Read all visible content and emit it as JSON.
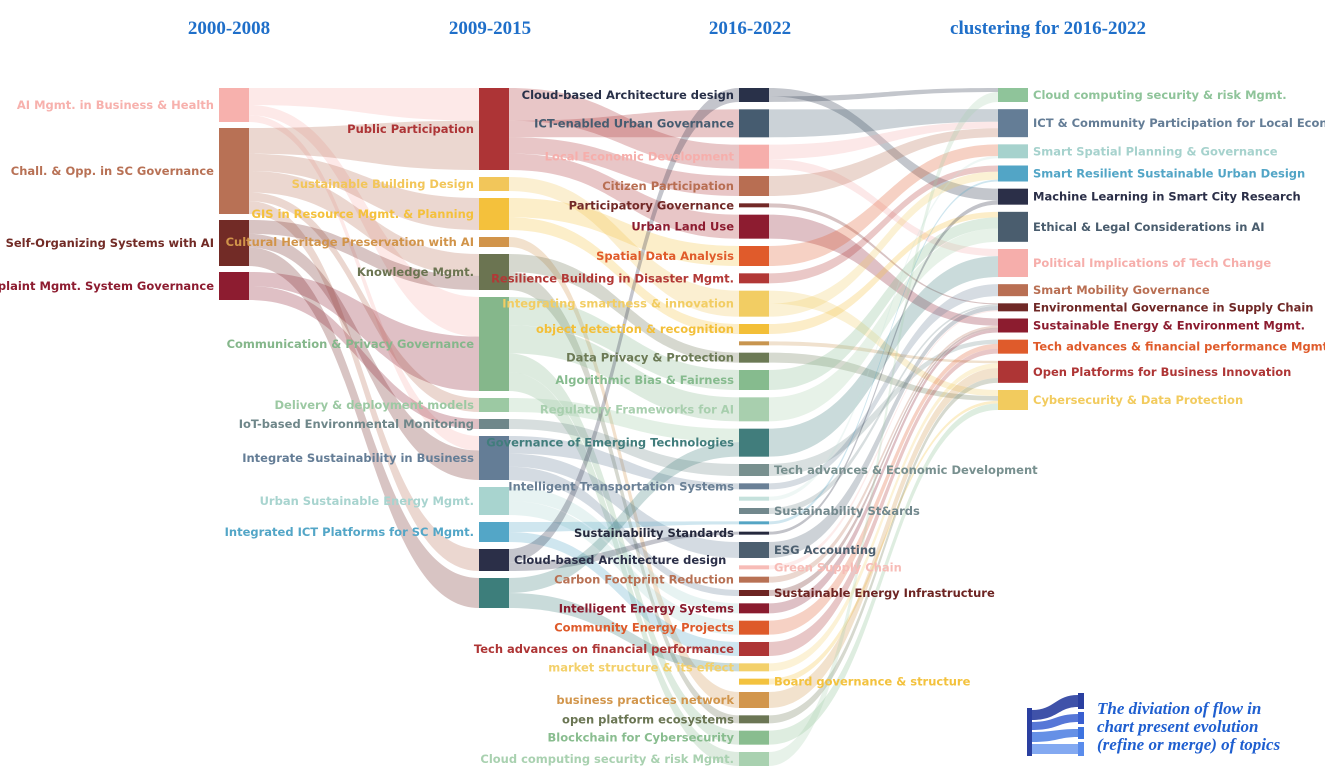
{
  "headers": [
    "2000-2008",
    "2009-2015",
    "2016-2022",
    "clustering for 2016-2022"
  ],
  "columns": [
    [
      {
        "label": "AI Mgmt. in Business & Health",
        "color": "#f7b1ad",
        "h": 34
      },
      {
        "label": "Chall. & Opp. in SC Governance",
        "color": "#b87155",
        "h": 86
      },
      {
        "label": "Self-Organizing Systems with AI",
        "color": "#722b26",
        "h": 46
      },
      {
        "label": "Complaint Mgmt. System Governance",
        "color": "#8d1c30",
        "h": 28
      }
    ],
    [
      {
        "label": "Public Participation",
        "color": "#ad3436",
        "h": 82
      },
      {
        "label": "Sustainable Building Design",
        "color": "#f2c65a",
        "h": 14
      },
      {
        "label": "GIS in Resource Mgmt. & Planning",
        "color": "#f4c13c",
        "h": 32
      },
      {
        "label": "Cultural Heritage Preservation with AI",
        "color": "#d1944a",
        "h": 10
      },
      {
        "label": "Knowledge Mgmt.",
        "color": "#6b7451",
        "h": 36
      },
      {
        "label": "Communication & Privacy Governance",
        "color": "#85b78b",
        "h": 94
      },
      {
        "label": "Delivery & deployment models",
        "color": "#9cc9a3",
        "h": 14
      },
      {
        "label": "IoT-based Environmental Monitoring",
        "color": "#6f878a",
        "h": 10
      },
      {
        "label": "Integrate Sustainability in Business",
        "color": "#647d96",
        "h": 44
      },
      {
        "label": "Urban Sustainable Energy Mgmt.",
        "color": "#a8d4cf",
        "h": 28
      },
      {
        "label": "Integrated ICT Platforms for SC Mgmt.",
        "color": "#53a6c7",
        "h": 20
      },
      {
        "label": "Cloud-based Architecture design",
        "color": "#2b2f48",
        "h": 22,
        "right": true
      },
      {
        "label": "",
        "color": "#3d7e7b",
        "h": 30
      }
    ],
    [
      {
        "label": "Cloud-based Architecture design",
        "color": "#293149",
        "h": 14
      },
      {
        "label": "ICT-enabled Urban Governance",
        "color": "#465c70",
        "h": 28
      },
      {
        "label": "Local Economic Development",
        "color": "#f6aeab",
        "h": 24
      },
      {
        "label": "Citizen Participation",
        "color": "#b86e52",
        "h": 20
      },
      {
        "label": "Participatory Governance",
        "color": "#722927",
        "h": 4
      },
      {
        "label": "Urban Land Use",
        "color": "#8d1c30",
        "h": 24
      },
      {
        "label": "Spatial Data Analysis",
        "color": "#e05b2b",
        "h": 20
      },
      {
        "label": "Resilience Building in Disaster Mgmt.",
        "color": "#b23836",
        "h": 10
      },
      {
        "label": "Integrating smartness & innovation",
        "color": "#f2cd63",
        "h": 26
      },
      {
        "label": "object detection & recognition",
        "color": "#f3bf38",
        "h": 10
      },
      {
        "label": "",
        "color": "#c8954f",
        "h": 4
      },
      {
        "label": "Data Privacy & Protection",
        "color": "#6c7a55",
        "h": 10
      },
      {
        "label": "Algorithmic Bias & Fairness",
        "color": "#86bb8e",
        "h": 20
      },
      {
        "label": "Regulatory Frameworks for AI",
        "color": "#a8cfae",
        "h": 24
      },
      {
        "label": "Governance of Emerging Technologies",
        "color": "#417d7c",
        "h": 28
      },
      {
        "label": "Tech advances & Economic Development",
        "color": "#78908f",
        "h": 12,
        "right": true
      },
      {
        "label": "Intelligent Transportation Systems",
        "color": "#6a8096",
        "h": 6
      },
      {
        "label": "",
        "color": "#c5e1dc",
        "h": 4
      },
      {
        "label": "Sustainability St&ards",
        "color": "#72888d",
        "h": 6,
        "right": true
      },
      {
        "label": "",
        "color": "#54a5c4",
        "h": 3
      },
      {
        "label": "Sustainability Standards",
        "color": "#25293d",
        "h": 3
      },
      {
        "label": "ESG Accounting",
        "color": "#4c5f6f",
        "h": 16,
        "right": true
      },
      {
        "label": "Green Supply Chain",
        "color": "#f7bcb7",
        "h": 4,
        "right": true
      },
      {
        "label": "Carbon Footprint Reduction",
        "color": "#b87154",
        "h": 6
      },
      {
        "label": "Sustainable Energy Infrastructure",
        "color": "#6d2422",
        "h": 6,
        "right": true
      },
      {
        "label": "Intelligent Energy Systems",
        "color": "#8a1b2e",
        "h": 10
      },
      {
        "label": "Community Energy Projects",
        "color": "#de5a2a",
        "h": 14
      },
      {
        "label": "Tech advances on financial performance",
        "color": "#ae3535",
        "h": 14
      },
      {
        "label": "market structure & its effect",
        "color": "#f3d06a",
        "h": 8
      },
      {
        "label": "Board governance & structure",
        "color": "#f3c23e",
        "h": 6,
        "right": true
      },
      {
        "label": "business practices network",
        "color": "#d2964c",
        "h": 16
      },
      {
        "label": "open platform ecosystems",
        "color": "#6b7654",
        "h": 8
      },
      {
        "label": "Blockchain for Cybersecurity",
        "color": "#89bd8f",
        "h": 14
      },
      {
        "label": "Cloud computing security & risk Mgmt.",
        "color": "#a9d1b0",
        "h": 14
      }
    ],
    [
      {
        "label": "Cloud computing security & risk Mgmt.",
        "color": "#8fc49a",
        "h": 14
      },
      {
        "label": "ICT & Community Participation for Local Economy",
        "color": "#647d96",
        "h": 28
      },
      {
        "label": "Smart Spatial Planning & Governance",
        "color": "#a6d2cd",
        "h": 14
      },
      {
        "label": "Smart Resilient Sustainable Urban Design",
        "color": "#52a5c6",
        "h": 16
      },
      {
        "label": "Machine Learning in Smart City Research",
        "color": "#2b2f48",
        "h": 16
      },
      {
        "label": "Ethical & Legal Considerations in AI",
        "color": "#4a5d6e",
        "h": 30
      },
      {
        "label": "Political Implications of Tech Change",
        "color": "#f6aeab",
        "h": 28
      },
      {
        "label": "Smart Mobility Governance",
        "color": "#b96f53",
        "h": 12
      },
      {
        "label": "Environmental Governance in Supply Chain",
        "color": "#6f2826",
        "h": 8
      },
      {
        "label": "Sustainable Energy & Environment Mgmt.",
        "color": "#8c1c2f",
        "h": 14
      },
      {
        "label": "Tech advances & financial performance Mgmt.",
        "color": "#df5b2b",
        "h": 14
      },
      {
        "label": "Open Platforms for Business Innovation",
        "color": "#ae3535",
        "h": 22
      },
      {
        "label": "Cybersecurity & Data Protection",
        "color": "#f2cb5e",
        "h": 20
      }
    ]
  ],
  "flows": [
    [
      0,
      0,
      1,
      0,
      0.5
    ],
    [
      0,
      0,
      1,
      5,
      0.3
    ],
    [
      0,
      0,
      1,
      8,
      0.2
    ],
    [
      0,
      1,
      1,
      0,
      0.3
    ],
    [
      0,
      1,
      1,
      2,
      0.2
    ],
    [
      0,
      1,
      1,
      4,
      0.25
    ],
    [
      0,
      1,
      1,
      6,
      0.1
    ],
    [
      0,
      1,
      1,
      11,
      0.15
    ],
    [
      0,
      2,
      1,
      4,
      0.3
    ],
    [
      0,
      2,
      1,
      8,
      0.3
    ],
    [
      0,
      2,
      1,
      12,
      0.4
    ],
    [
      0,
      3,
      1,
      5,
      0.5
    ],
    [
      0,
      3,
      1,
      7,
      0.5
    ],
    [
      1,
      0,
      2,
      2,
      0.4
    ],
    [
      1,
      0,
      2,
      1,
      0.2
    ],
    [
      1,
      0,
      2,
      3,
      0.2
    ],
    [
      1,
      0,
      2,
      5,
      0.2
    ],
    [
      1,
      1,
      2,
      8,
      1.0
    ],
    [
      1,
      2,
      2,
      6,
      0.6
    ],
    [
      1,
      2,
      2,
      9,
      0.4
    ],
    [
      1,
      3,
      2,
      30,
      1.0
    ],
    [
      1,
      4,
      2,
      11,
      0.5
    ],
    [
      1,
      4,
      2,
      31,
      0.5
    ],
    [
      1,
      5,
      2,
      12,
      0.3
    ],
    [
      1,
      5,
      2,
      13,
      0.3
    ],
    [
      1,
      5,
      2,
      32,
      0.2
    ],
    [
      1,
      5,
      2,
      33,
      0.2
    ],
    [
      1,
      6,
      2,
      14,
      1.0
    ],
    [
      1,
      7,
      2,
      15,
      1.0
    ],
    [
      1,
      8,
      2,
      16,
      0.4
    ],
    [
      1,
      8,
      2,
      21,
      0.3
    ],
    [
      1,
      8,
      2,
      24,
      0.3
    ],
    [
      1,
      9,
      2,
      25,
      0.5
    ],
    [
      1,
      9,
      2,
      26,
      0.5
    ],
    [
      1,
      10,
      2,
      19,
      0.5
    ],
    [
      1,
      10,
      2,
      27,
      0.5
    ],
    [
      1,
      11,
      2,
      0,
      0.6
    ],
    [
      1,
      11,
      2,
      20,
      0.4
    ],
    [
      1,
      12,
      2,
      14,
      0.5
    ],
    [
      1,
      12,
      2,
      28,
      0.5
    ],
    [
      2,
      0,
      3,
      4,
      0.6
    ],
    [
      2,
      0,
      3,
      0,
      0.4
    ],
    [
      2,
      1,
      3,
      1,
      1.0
    ],
    [
      2,
      2,
      3,
      1,
      0.6
    ],
    [
      2,
      2,
      3,
      6,
      0.4
    ],
    [
      2,
      3,
      3,
      1,
      1.0
    ],
    [
      2,
      4,
      3,
      8,
      1.0
    ],
    [
      2,
      5,
      3,
      9,
      1.0
    ],
    [
      2,
      6,
      3,
      2,
      1.0
    ],
    [
      2,
      7,
      3,
      3,
      1.0
    ],
    [
      2,
      8,
      3,
      12,
      0.5
    ],
    [
      2,
      8,
      3,
      3,
      0.5
    ],
    [
      2,
      9,
      3,
      5,
      1.0
    ],
    [
      2,
      10,
      3,
      11,
      1.0
    ],
    [
      2,
      11,
      3,
      12,
      1.0
    ],
    [
      2,
      12,
      3,
      5,
      1.0
    ],
    [
      2,
      13,
      3,
      5,
      1.0
    ],
    [
      2,
      14,
      3,
      6,
      1.0
    ],
    [
      2,
      15,
      3,
      10,
      1.0
    ],
    [
      2,
      16,
      3,
      7,
      1.0
    ],
    [
      2,
      17,
      3,
      2,
      1.0
    ],
    [
      2,
      18,
      3,
      8,
      1.0
    ],
    [
      2,
      19,
      3,
      3,
      1.0
    ],
    [
      2,
      20,
      3,
      4,
      1.0
    ],
    [
      2,
      21,
      3,
      8,
      1.0
    ],
    [
      2,
      22,
      3,
      8,
      1.0
    ],
    [
      2,
      23,
      3,
      9,
      1.0
    ],
    [
      2,
      24,
      3,
      9,
      1.0
    ],
    [
      2,
      25,
      3,
      9,
      1.0
    ],
    [
      2,
      26,
      3,
      10,
      1.0
    ],
    [
      2,
      27,
      3,
      10,
      1.0
    ],
    [
      2,
      28,
      3,
      11,
      1.0
    ],
    [
      2,
      29,
      3,
      12,
      1.0
    ],
    [
      2,
      30,
      3,
      11,
      1.0
    ],
    [
      2,
      31,
      3,
      11,
      1.0
    ],
    [
      2,
      32,
      3,
      12,
      1.0
    ],
    [
      2,
      33,
      3,
      0,
      1.0
    ]
  ],
  "legend": {
    "icon": "sankey-flow-icon",
    "lines": [
      "The diviation of flow in",
      "chart present evolution",
      "(refine or merge) of topics"
    ]
  }
}
